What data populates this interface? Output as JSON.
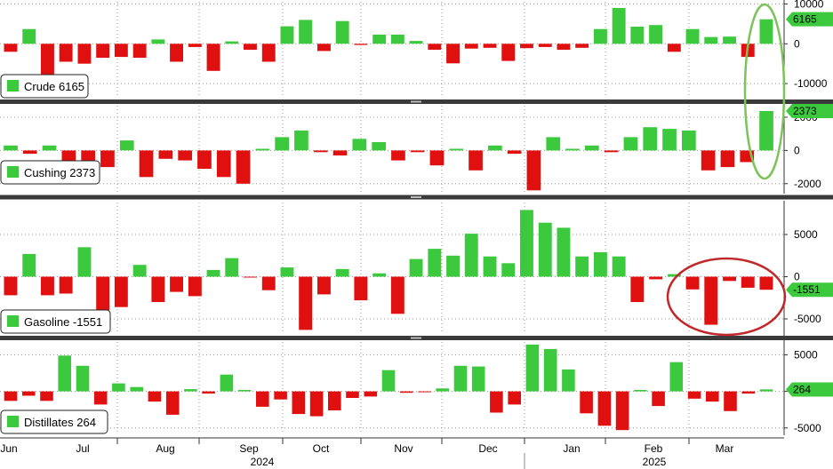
{
  "colors": {
    "positive": "#3dc93d",
    "negative": "#e01010",
    "circle_green": "#7cc35a",
    "circle_red": "#c0282a",
    "grid": "#c8c8c8"
  },
  "legend_icon": "green-square-icon",
  "chart_data": [
    {
      "type": "bar",
      "legend": "Crude 6165",
      "last_value": "6165",
      "ylim": [
        -14000,
        11000
      ],
      "ticks": [
        {
          "v": 10000,
          "label": "10000"
        },
        {
          "v": 0,
          "label": "0"
        },
        {
          "v": -10000,
          "label": "-10000"
        }
      ],
      "values": [
        -2000,
        3700,
        -8000,
        -4500,
        -5000,
        -3500,
        -3300,
        -3500,
        1100,
        -4500,
        -800,
        -6800,
        600,
        -1500,
        -4500,
        4400,
        6000,
        -1800,
        5700,
        -300,
        2300,
        2300,
        700,
        -1500,
        -4900,
        -1200,
        -1000,
        -4300,
        -1100,
        -800,
        -1500,
        -1000,
        3700,
        9000,
        4300,
        4700,
        -2000,
        3700,
        1700,
        1800,
        -3300,
        6165
      ]
    },
    {
      "type": "bar",
      "legend": "Cushing 2373",
      "last_value": "2373",
      "ylim": [
        -2600,
        2800
      ],
      "ticks": [
        {
          "v": 2000,
          "label": "2000"
        },
        {
          "v": 0,
          "label": "0"
        },
        {
          "v": -2000,
          "label": "-2000"
        }
      ],
      "values": [
        300,
        -200,
        300,
        -700,
        -1500,
        -1000,
        600,
        -1600,
        -500,
        -600,
        -1100,
        -1600,
        -2000,
        100,
        800,
        1200,
        -100,
        -300,
        700,
        500,
        -600,
        -100,
        -900,
        100,
        -1200,
        300,
        -200,
        -2400,
        800,
        100,
        300,
        -100,
        800,
        1400,
        1300,
        1200,
        -1200,
        -1000,
        -700,
        2373
      ]
    },
    {
      "type": "bar",
      "legend": "Gasoline -1551",
      "last_value": "-1551",
      "ylim": [
        -7000,
        9000
      ],
      "ticks": [
        {
          "v": 5000,
          "label": "5000"
        },
        {
          "v": 0,
          "label": "0"
        },
        {
          "v": -5000,
          "label": "-5000"
        }
      ],
      "values": [
        -2200,
        2700,
        -2200,
        -2000,
        3500,
        -4000,
        -3600,
        1400,
        -3000,
        -1800,
        -2300,
        800,
        2200,
        -100,
        -1600,
        1100,
        -6300,
        -2100,
        900,
        -2800,
        400,
        -4400,
        2100,
        3300,
        2500,
        5100,
        2400,
        1600,
        7900,
        6400,
        5800,
        2400,
        2900,
        2400,
        -3000,
        -300,
        300,
        -1500,
        -5700,
        -500,
        -1300,
        -1551
      ]
    },
    {
      "type": "bar",
      "legend": "Distillates 264",
      "last_value": "264",
      "ylim": [
        -6000,
        7000
      ],
      "ticks": [
        {
          "v": 5000,
          "label": "5000"
        },
        {
          "v": 0,
          "label": "0"
        },
        {
          "v": -5000,
          "label": "-5000"
        }
      ],
      "values": [
        -1300,
        -600,
        -1300,
        4900,
        3500,
        -1800,
        1100,
        600,
        -1400,
        -3200,
        300,
        -300,
        2300,
        200,
        -2100,
        -1100,
        -3100,
        -3400,
        -2600,
        -900,
        -700,
        2900,
        -200,
        -100,
        400,
        3500,
        3400,
        -2900,
        -1800,
        6400,
        5800,
        3000,
        -3000,
        -4700,
        -5300,
        200,
        -2000,
        4000,
        -1000,
        -1400,
        -2700,
        -300,
        264
      ]
    }
  ],
  "x_axis": {
    "months": [
      "Jun",
      "Jul",
      "Aug",
      "Sep",
      "Oct",
      "Nov",
      "Dec",
      "Jan",
      "Feb",
      "Mar"
    ],
    "years": [
      "2024",
      "2025"
    ]
  }
}
